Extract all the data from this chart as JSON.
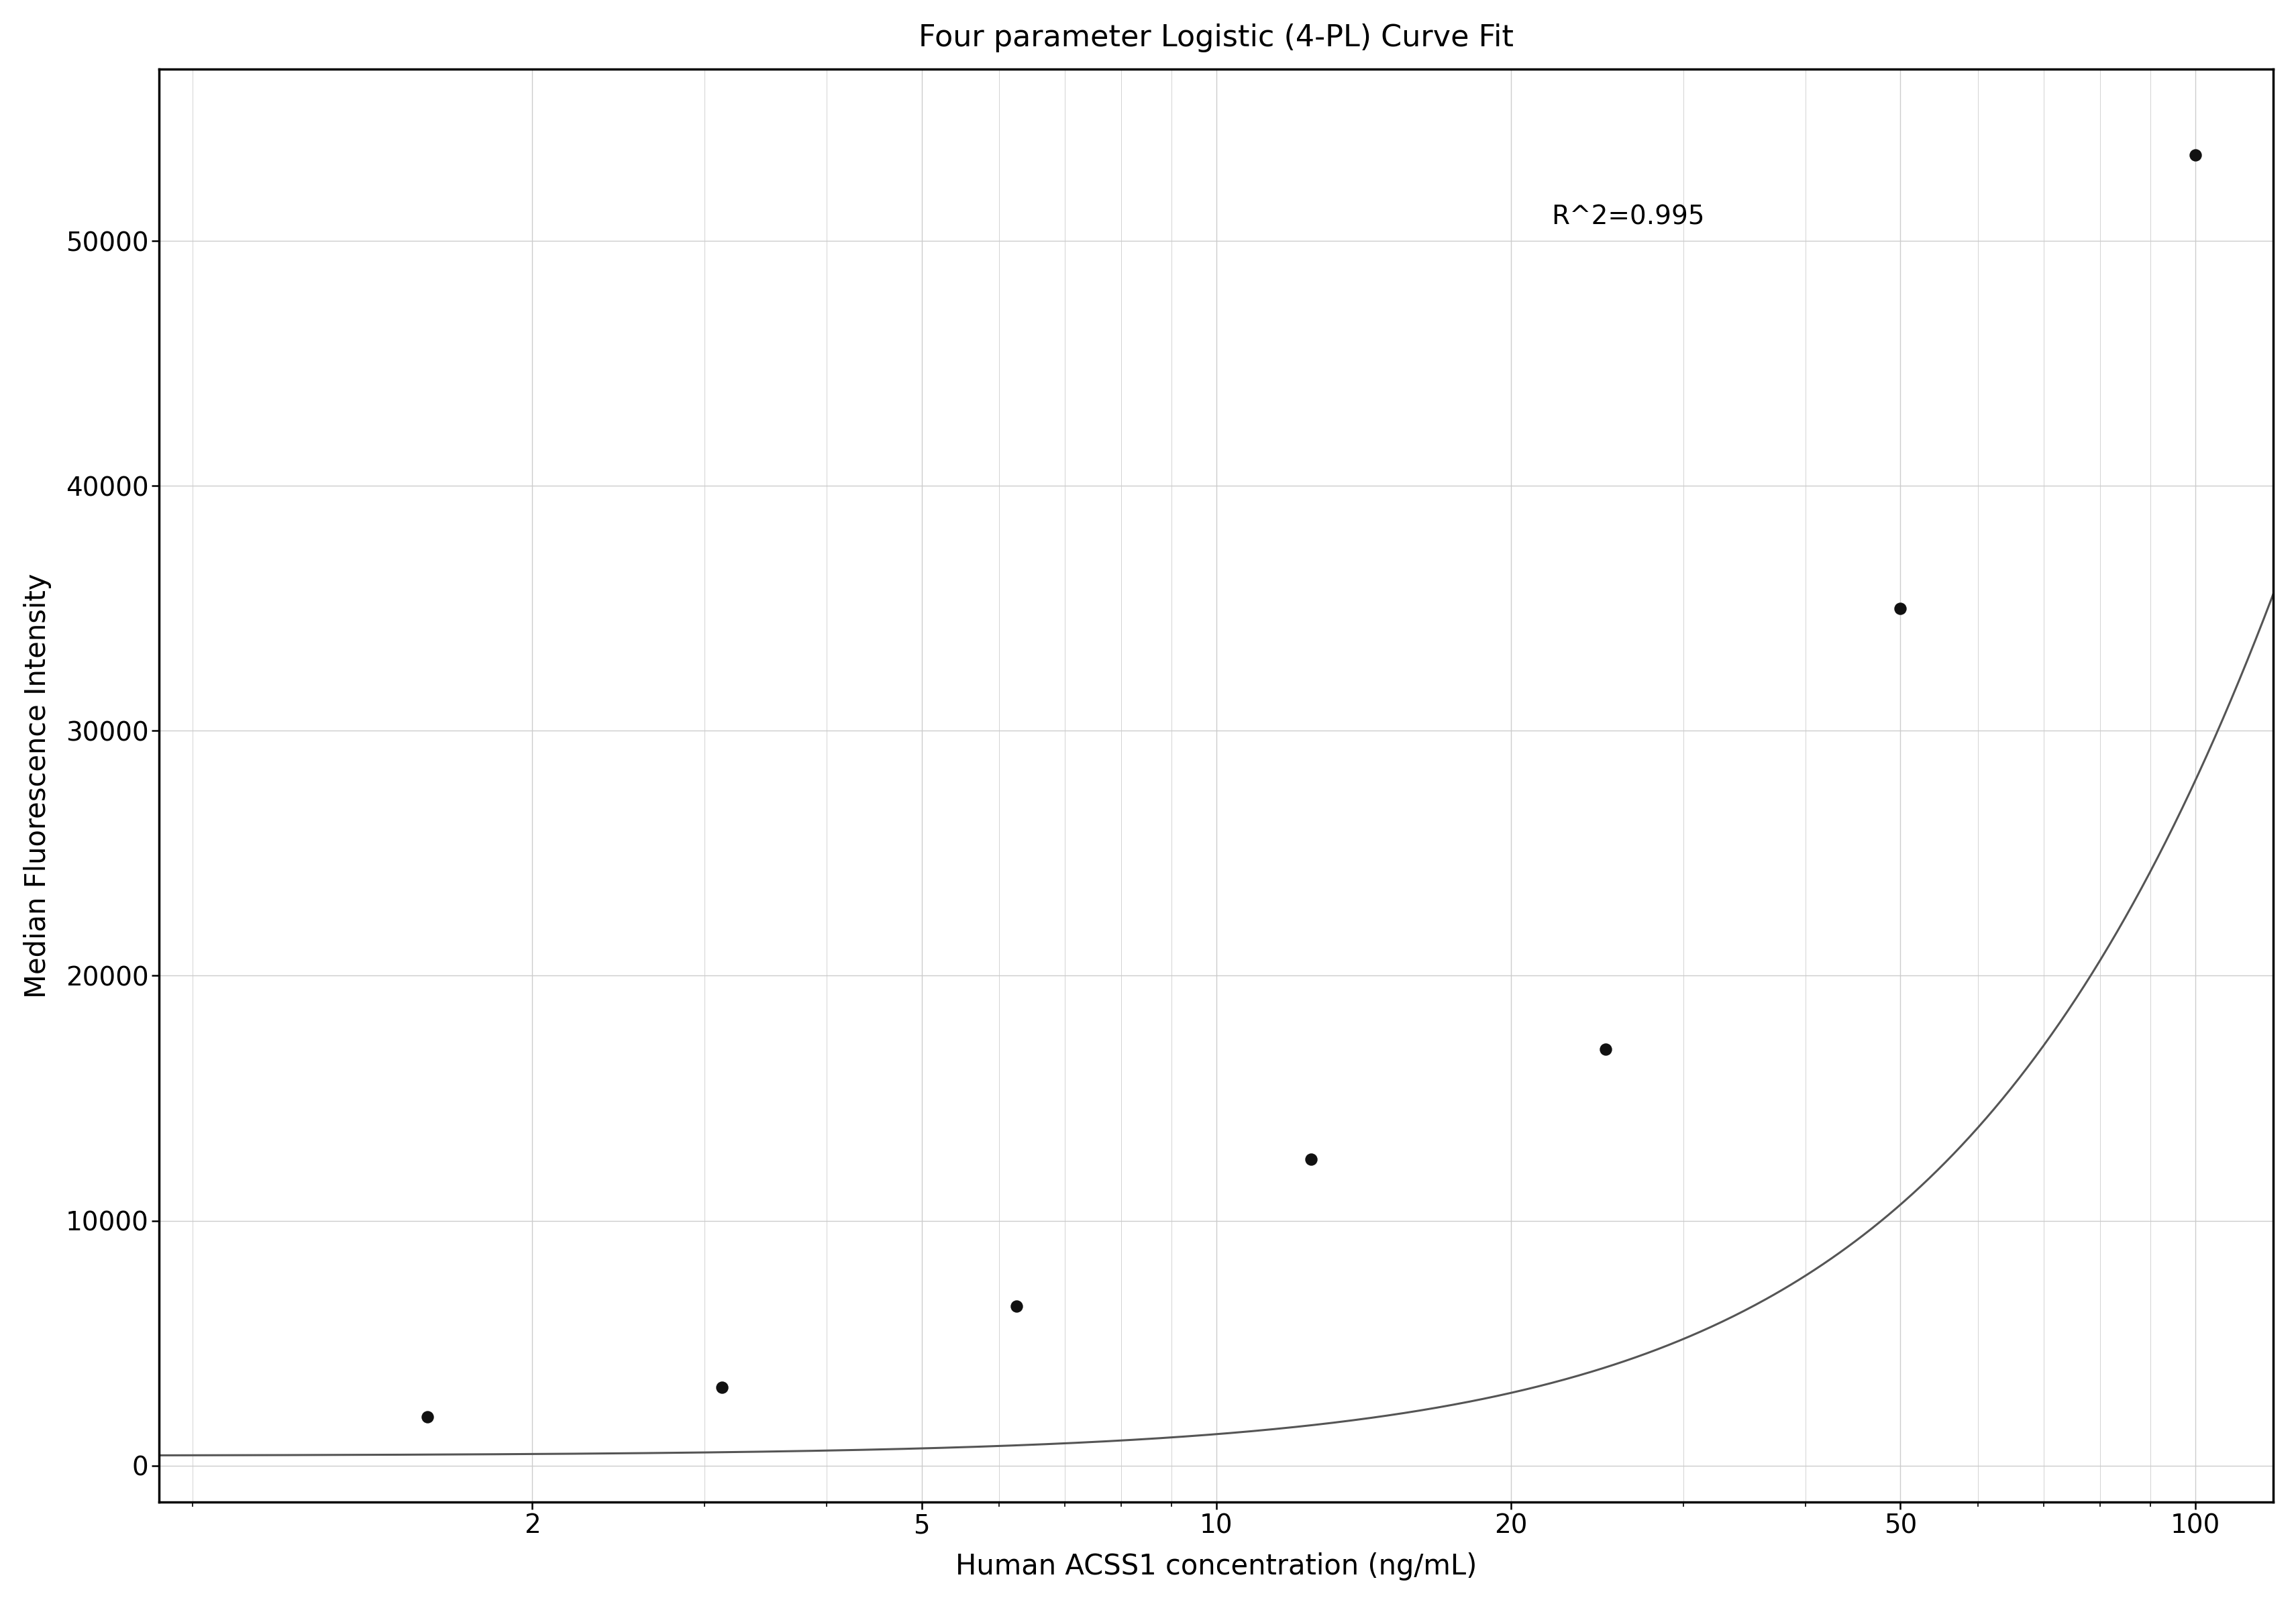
{
  "title": "Four parameter Logistic (4-PL) Curve Fit",
  "xlabel": "Human ACSS1 concentration (ng/mL)",
  "ylabel": "Median Fluorescence Intensity",
  "r_squared": "R^2=0.995",
  "scatter_x": [
    1.5625,
    3.125,
    6.25,
    12.5,
    25.0,
    50.0,
    100.0
  ],
  "scatter_y": [
    2000,
    3200,
    6500,
    12500,
    17000,
    35000,
    53500
  ],
  "xlim_log": [
    -0.08,
    2.08
  ],
  "ylim": [
    -1500,
    57000
  ],
  "yticks": [
    0,
    10000,
    20000,
    30000,
    40000,
    50000
  ],
  "xticks": [
    2,
    5,
    10,
    20,
    50,
    100
  ],
  "4pl_A": 400,
  "4pl_D": 220000,
  "4pl_C": 350,
  "4pl_B": 1.55,
  "grid_color": "#cccccc",
  "line_color": "#555555",
  "dot_color": "#111111",
  "background_color": "#ffffff",
  "title_fontsize": 32,
  "label_fontsize": 30,
  "tick_fontsize": 28,
  "annotation_fontsize": 28,
  "dot_size": 150,
  "line_width": 2.2,
  "r2_x": 22,
  "r2_y": 51500
}
